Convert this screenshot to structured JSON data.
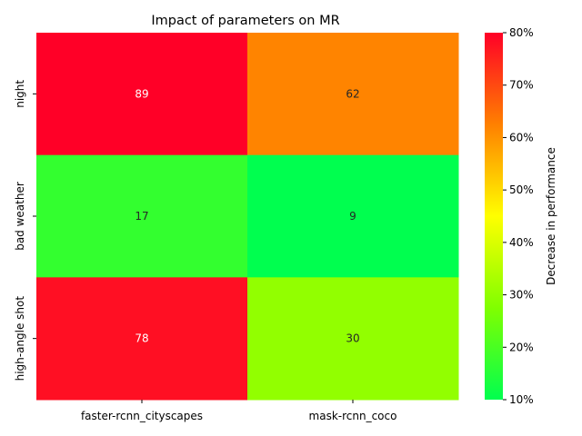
{
  "chart_data": {
    "type": "heatmap",
    "title": "Impact of parameters on MR",
    "columns": [
      "faster-rcnn_cityscapes",
      "mask-rcnn_coco"
    ],
    "rows": [
      "night",
      "bad weather",
      "high-angle shot"
    ],
    "values": [
      [
        89,
        62
      ],
      [
        17,
        9
      ],
      [
        78,
        30
      ]
    ],
    "colorbar": {
      "label": "Decrease in performance",
      "range": [
        10,
        80
      ],
      "ticks": [
        "10%",
        "20%",
        "30%",
        "40%",
        "50%",
        "60%",
        "70%",
        "80%"
      ],
      "tick_values": [
        10,
        20,
        30,
        40,
        50,
        60,
        70,
        80
      ],
      "colors": [
        "#00ff4f",
        "#80ff00",
        "#ffff00",
        "#ff8000",
        "#ff0027"
      ]
    },
    "grid": false
  }
}
